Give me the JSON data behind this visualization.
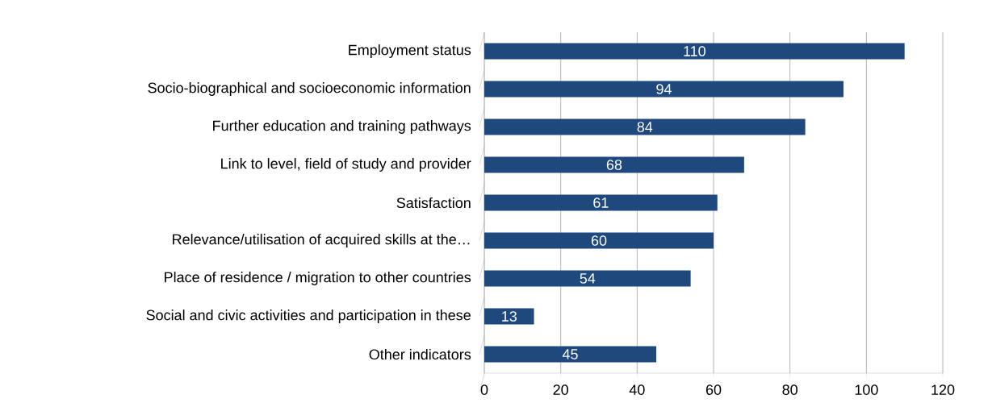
{
  "chart_data": {
    "type": "bar",
    "orientation": "horizontal",
    "categories": [
      "Employment status",
      "Socio-biographical and socioeconomic information",
      "Further education and training pathways",
      "Link to level, field of study and provider",
      "Satisfaction",
      "Relevance/utilisation of acquired skills at the…",
      "Place of residence / migration to other countries",
      "Social and civic activities and participation in these",
      "Other indicators"
    ],
    "values": [
      110,
      94,
      84,
      68,
      61,
      60,
      54,
      13,
      45
    ],
    "color": "#1f497d",
    "xlim": [
      0,
      120
    ],
    "xticks": [
      0,
      20,
      40,
      60,
      80,
      100,
      120
    ],
    "grid": "x",
    "data_labels": true
  }
}
